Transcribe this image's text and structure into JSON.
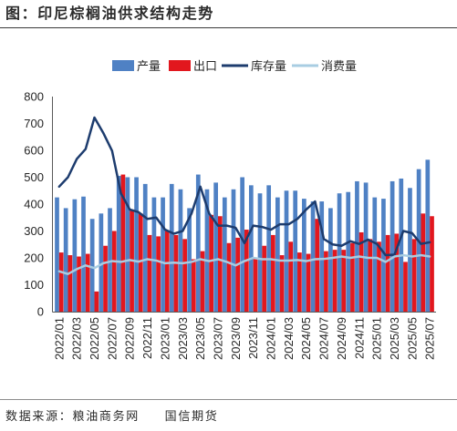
{
  "chart_data": {
    "type": "bar",
    "title": "图：印尼棕榈油供求结构走势",
    "x": [
      "2022/01",
      "2022/02",
      "2022/03",
      "2022/04",
      "2022/05",
      "2022/06",
      "2022/07",
      "2022/08",
      "2022/09",
      "2022/10",
      "2022/11",
      "2022/12",
      "2023/01",
      "2023/02",
      "2023/03",
      "2023/04",
      "2023/05",
      "2023/06",
      "2023/07",
      "2023/08",
      "2023/09",
      "2023/10",
      "2023/11",
      "2023/12",
      "2024/01",
      "2024/02",
      "2024/03",
      "2024/04",
      "2024/05",
      "2024/06",
      "2024/07",
      "2024/08",
      "2024/09",
      "2024/10",
      "2024/11",
      "2024/12",
      "2025/01",
      "2025/02",
      "2025/03",
      "2025/04",
      "2025/05",
      "2025/06",
      "2025/07"
    ],
    "xticks": [
      "2022/01",
      "2022/03",
      "2022/05",
      "2022/07",
      "2022/09",
      "2022/11",
      "2023/01",
      "2023/03",
      "2023/05",
      "2023/07",
      "2023/09",
      "2023/11",
      "2024/01",
      "2024/03",
      "2024/05",
      "2024/07",
      "2024/09",
      "2024/11",
      "2025/01",
      "2025/03",
      "2025/05",
      "2025/07"
    ],
    "ylim": [
      0,
      800
    ],
    "yticks": [
      0,
      100,
      200,
      300,
      400,
      500,
      600,
      700,
      800
    ],
    "grid": false,
    "legend_position": "top-center",
    "series": [
      {
        "name": "产量",
        "type": "bar",
        "color": "#4f81c4",
        "values": [
          425,
          385,
          418,
          428,
          345,
          365,
          385,
          505,
          500,
          500,
          475,
          425,
          425,
          475,
          455,
          385,
          510,
          455,
          480,
          425,
          455,
          500,
          470,
          440,
          470,
          425,
          450,
          450,
          420,
          410,
          410,
          385,
          440,
          445,
          485,
          480,
          425,
          420,
          485,
          495,
          460,
          530,
          565
        ]
      },
      {
        "name": "出口",
        "type": "bar",
        "color": "#e2171e",
        "values": [
          220,
          210,
          205,
          215,
          75,
          245,
          300,
          510,
          380,
          365,
          285,
          280,
          300,
          285,
          270,
          195,
          225,
          360,
          355,
          255,
          275,
          305,
          200,
          245,
          285,
          210,
          260,
          220,
          215,
          345,
          225,
          230,
          230,
          255,
          295,
          270,
          260,
          285,
          290,
          185,
          270,
          365,
          355
        ]
      },
      {
        "name": "库存量",
        "type": "line",
        "color": "#1d3c6e",
        "values": [
          465,
          500,
          568,
          605,
          722,
          665,
          598,
          440,
          380,
          370,
          345,
          350,
          305,
          290,
          300,
          365,
          465,
          365,
          320,
          320,
          312,
          255,
          320,
          315,
          305,
          325,
          325,
          345,
          380,
          410,
          270,
          250,
          245,
          262,
          252,
          268,
          252,
          210,
          212,
          300,
          292,
          252,
          258
        ]
      },
      {
        "name": "消费量",
        "type": "line",
        "color": "#a8cde2",
        "values": [
          150,
          140,
          158,
          172,
          162,
          180,
          188,
          185,
          192,
          186,
          195,
          190,
          180,
          182,
          180,
          185,
          195,
          188,
          195,
          185,
          172,
          188,
          200,
          195,
          195,
          190,
          190,
          192,
          188,
          195,
          196,
          200,
          205,
          200,
          205,
          200,
          200,
          185,
          205,
          210,
          205,
          210,
          205
        ]
      }
    ]
  },
  "source": "数据来源：粮油商务网  国信期货"
}
